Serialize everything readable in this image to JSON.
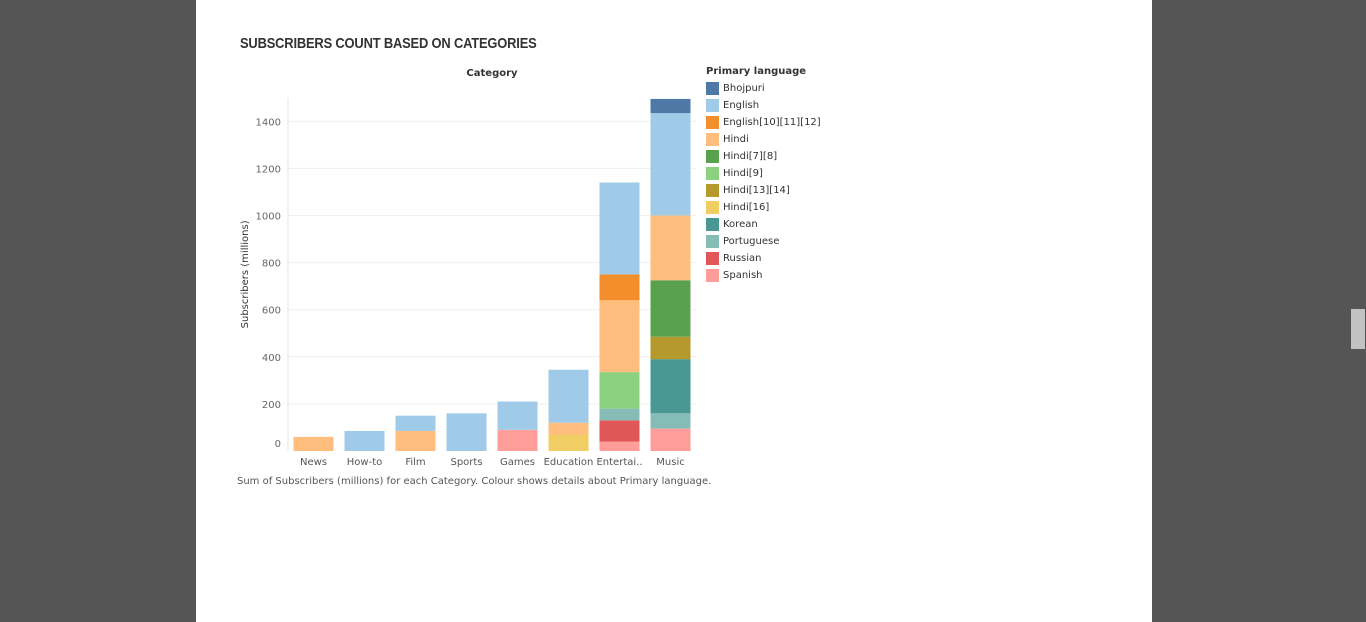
{
  "chart_data": {
    "type": "bar",
    "stacked": true,
    "title": "SUBSCRIBERS COUNT BASED ON CATEGORIES",
    "column_header": "Category",
    "ylabel": "Subscribers (millions)",
    "ylim": [
      0,
      1500
    ],
    "yticks": [
      0,
      200,
      400,
      600,
      800,
      1000,
      1200,
      1400
    ],
    "categories": [
      "News",
      "How-to",
      "Film",
      "Sports",
      "Games",
      "Education",
      "Entertai..",
      "Music"
    ],
    "legend_title": "Primary language",
    "legend_placement": "right",
    "series": [
      {
        "name": "Spanish",
        "color": "#ff9d9a",
        "values": [
          0,
          0,
          0,
          0,
          90,
          0,
          40,
          95
        ]
      },
      {
        "name": "Russian",
        "color": "#e15759",
        "values": [
          0,
          0,
          0,
          0,
          0,
          0,
          90,
          0
        ]
      },
      {
        "name": "Portuguese",
        "color": "#86bcb6",
        "values": [
          0,
          0,
          0,
          0,
          0,
          0,
          50,
          65
        ]
      },
      {
        "name": "Korean",
        "color": "#499894",
        "values": [
          0,
          0,
          0,
          0,
          0,
          0,
          0,
          230
        ]
      },
      {
        "name": "Hindi[16]",
        "color": "#f1ce63",
        "values": [
          0,
          0,
          0,
          0,
          0,
          70,
          0,
          0
        ]
      },
      {
        "name": "Hindi[13][14]",
        "color": "#b6992d",
        "values": [
          0,
          0,
          0,
          0,
          0,
          0,
          0,
          95
        ]
      },
      {
        "name": "Hindi[9]",
        "color": "#8cd17d",
        "values": [
          0,
          0,
          0,
          0,
          0,
          0,
          155,
          0
        ]
      },
      {
        "name": "Hindi[7][8]",
        "color": "#59a14f",
        "values": [
          0,
          0,
          0,
          0,
          0,
          0,
          0,
          240
        ]
      },
      {
        "name": "Hindi",
        "color": "#ffbe7d",
        "values": [
          60,
          0,
          85,
          0,
          0,
          50,
          305,
          275
        ]
      },
      {
        "name": "English[10][11][12]",
        "color": "#f28e2b",
        "values": [
          0,
          0,
          0,
          0,
          0,
          0,
          110,
          0
        ]
      },
      {
        "name": "English",
        "color": "#a0cbe8",
        "values": [
          0,
          85,
          65,
          160,
          120,
          225,
          390,
          435
        ]
      },
      {
        "name": "Bhojpuri",
        "color": "#4e79a7",
        "values": [
          0,
          0,
          0,
          0,
          0,
          0,
          0,
          60
        ]
      }
    ],
    "legend_order": [
      "Bhojpuri",
      "English",
      "English[10][11][12]",
      "Hindi",
      "Hindi[7][8]",
      "Hindi[9]",
      "Hindi[13][14]",
      "Hindi[16]",
      "Korean",
      "Portuguese",
      "Russian",
      "Spanish"
    ],
    "caption": "Sum of Subscribers (millions) for each Category.  Colour shows details about Primary language.",
    "grid": true
  }
}
